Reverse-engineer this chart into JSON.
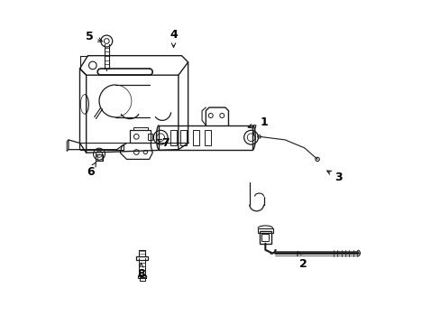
{
  "background_color": "#ffffff",
  "line_color": "#1a1a1a",
  "label_color": "#000000",
  "figsize": [
    4.89,
    3.6
  ],
  "dpi": 100,
  "callouts": {
    "1": {
      "lpos": [
        0.635,
        0.625
      ],
      "apos": [
        0.575,
        0.605
      ]
    },
    "2": {
      "lpos": [
        0.755,
        0.185
      ],
      "apos": [
        0.735,
        0.235
      ]
    },
    "3": {
      "lpos": [
        0.865,
        0.455
      ],
      "apos": [
        0.82,
        0.48
      ]
    },
    "4": {
      "lpos": [
        0.355,
        0.895
      ],
      "apos": [
        0.355,
        0.845
      ]
    },
    "5": {
      "lpos": [
        0.095,
        0.89
      ],
      "apos": [
        0.145,
        0.87
      ]
    },
    "6": {
      "lpos": [
        0.098,
        0.47
      ],
      "apos": [
        0.12,
        0.51
      ]
    },
    "7": {
      "lpos": [
        0.33,
        0.56
      ],
      "apos": [
        0.295,
        0.575
      ]
    },
    "8": {
      "lpos": [
        0.255,
        0.155
      ],
      "apos": [
        0.255,
        0.2
      ]
    }
  }
}
